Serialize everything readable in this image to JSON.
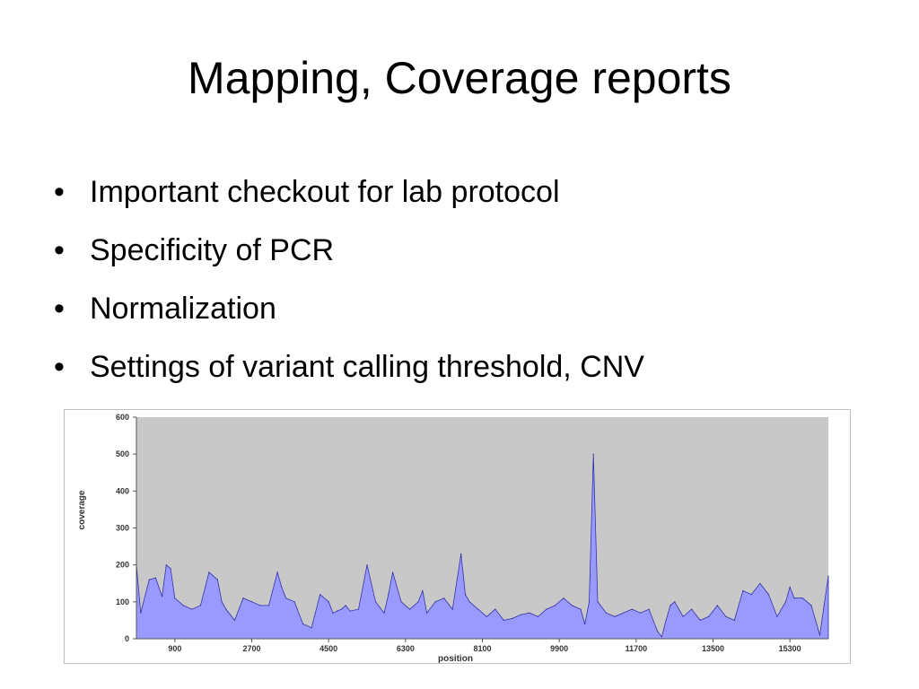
{
  "slide": {
    "title": "Mapping, Coverage reports",
    "bullet_glyph": "•",
    "bullets": [
      "Important checkout for lab protocol",
      "Specificity of PCR",
      "Normalization",
      "Settings of variant calling threshold, CNV"
    ]
  },
  "colors": {
    "plot_background": "#c8c8c8",
    "area_fill": "#9999ff",
    "area_stroke": "#3333aa",
    "axis_text": "#333333"
  },
  "chart_data": {
    "type": "area",
    "title": "",
    "xlabel": "position",
    "ylabel": "coverage",
    "xlim": [
      0,
      16200
    ],
    "ylim": [
      0,
      600
    ],
    "xticks": [
      900,
      2700,
      4500,
      6300,
      8100,
      9900,
      11700,
      13500,
      15300
    ],
    "yticks": [
      0,
      100,
      200,
      300,
      400,
      500,
      600
    ],
    "grid": false,
    "series": [
      {
        "x": [
          0,
          100,
          300,
          450,
          600,
          700,
          800,
          900,
          1100,
          1300,
          1500,
          1700,
          1900,
          2000,
          2100,
          2300,
          2500,
          2700,
          2900,
          3100,
          3300,
          3400,
          3500,
          3700,
          3900,
          4100,
          4300,
          4500,
          4600,
          4700,
          4800,
          4900,
          5000,
          5200,
          5400,
          5600,
          5800,
          5900,
          6000,
          6200,
          6400,
          6600,
          6700,
          6800,
          7000,
          7200,
          7400,
          7600,
          7700,
          7800,
          8000,
          8200,
          8400,
          8600,
          8800,
          9000,
          9200,
          9400,
          9600,
          9800,
          10000,
          10200,
          10400,
          10500,
          10600,
          10700,
          10800,
          11000,
          11200,
          11400,
          11600,
          11800,
          12000,
          12200,
          12300,
          12400,
          12500,
          12600,
          12800,
          13000,
          13200,
          13400,
          13600,
          13800,
          14000,
          14200,
          14400,
          14600,
          14800,
          15000,
          15200,
          15300,
          15400,
          15600,
          15800,
          16000,
          16100,
          16200
        ],
        "y": [
          200,
          70,
          160,
          165,
          115,
          200,
          190,
          110,
          90,
          80,
          90,
          180,
          160,
          100,
          80,
          50,
          110,
          100,
          90,
          90,
          180,
          140,
          110,
          100,
          40,
          30,
          120,
          100,
          70,
          75,
          80,
          90,
          75,
          80,
          200,
          100,
          70,
          120,
          180,
          100,
          80,
          100,
          130,
          70,
          100,
          110,
          80,
          230,
          120,
          100,
          80,
          60,
          80,
          50,
          55,
          65,
          70,
          60,
          80,
          90,
          110,
          90,
          80,
          40,
          100,
          500,
          100,
          70,
          60,
          70,
          80,
          70,
          80,
          20,
          5,
          50,
          90,
          100,
          60,
          80,
          50,
          60,
          90,
          60,
          50,
          130,
          120,
          150,
          120,
          60,
          100,
          140,
          110,
          110,
          90,
          10,
          90,
          170
        ]
      }
    ]
  }
}
